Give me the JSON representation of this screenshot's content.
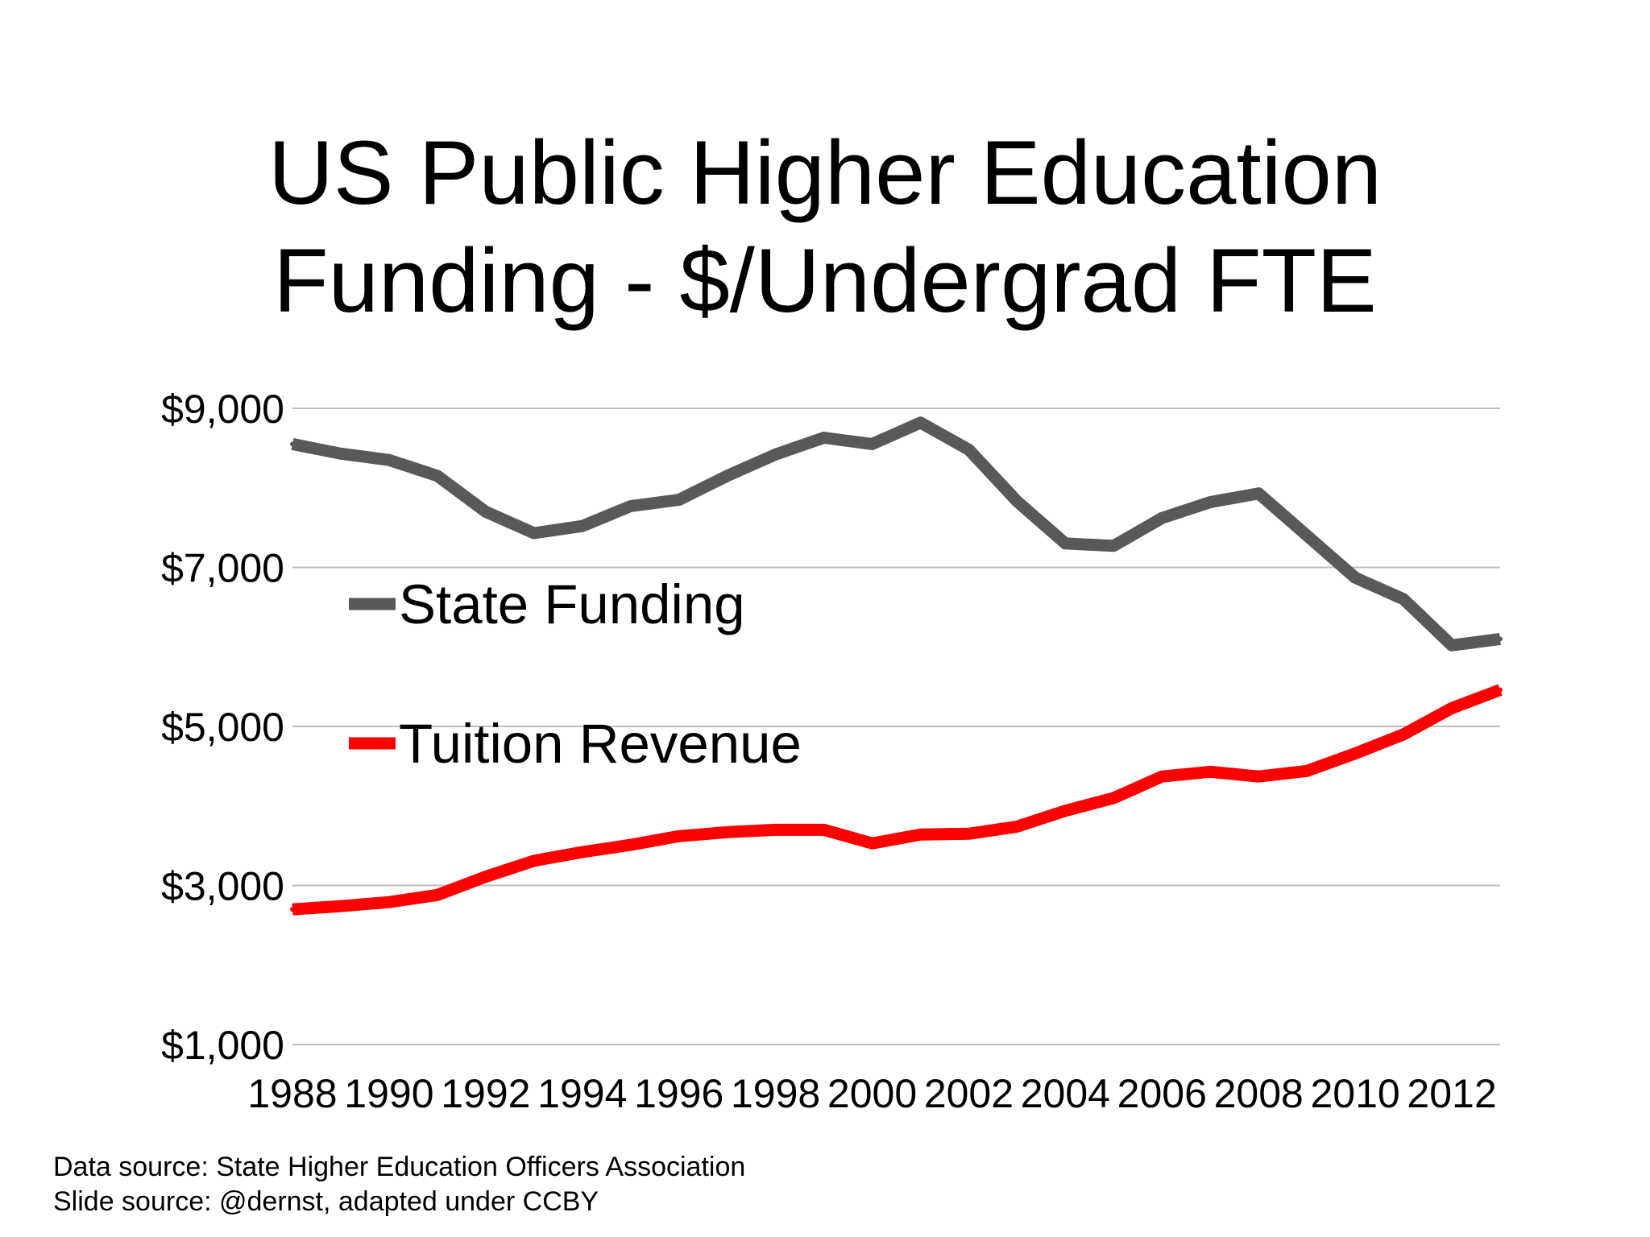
{
  "title": {
    "line1": "US Public Higher Education",
    "line2": "Funding - $/Undergrad FTE"
  },
  "footer": {
    "data_source": "Data source: State Higher Education Officers Association",
    "slide_source": "Slide source: @dernst, adapted under CCBY"
  },
  "colors": {
    "state_funding": "#595959",
    "tuition_revenue": "#ff0000",
    "gridline": "#bfbfbf"
  },
  "chart_data": {
    "type": "line",
    "title": "US Public Higher Education Funding - $/Undergrad FTE",
    "xlabel": "",
    "ylabel": "",
    "x": [
      1988,
      1989,
      1990,
      1991,
      1992,
      1993,
      1994,
      1995,
      1996,
      1997,
      1998,
      1999,
      2000,
      2001,
      2002,
      2003,
      2004,
      2005,
      2006,
      2007,
      2008,
      2009,
      2010,
      2011,
      2012,
      2013
    ],
    "x_tick_labels": [
      "1988",
      "1990",
      "1992",
      "1994",
      "1996",
      "1998",
      "2000",
      "2002",
      "2004",
      "2006",
      "2008",
      "2010",
      "2012"
    ],
    "y_tick_labels": [
      "$9,000",
      "$7,000",
      "$5,000",
      "$3,000",
      "$1,000"
    ],
    "y_tick_values": [
      9000,
      7000,
      5000,
      3000,
      1000
    ],
    "ylim": [
      1000,
      9000
    ],
    "grid": true,
    "legend_position": "left-center",
    "series": [
      {
        "name": "State Funding",
        "color": "#595959",
        "values": [
          8550,
          8430,
          8350,
          8150,
          7700,
          7430,
          7520,
          7770,
          7850,
          8150,
          8420,
          8630,
          8550,
          8820,
          8480,
          7830,
          7300,
          7270,
          7620,
          7820,
          7930,
          7400,
          6870,
          6600,
          6020,
          6100
        ]
      },
      {
        "name": "Tuition Revenue",
        "color": "#ff0000",
        "values": [
          2700,
          2740,
          2790,
          2880,
          3110,
          3310,
          3420,
          3510,
          3620,
          3670,
          3700,
          3700,
          3530,
          3640,
          3650,
          3740,
          3940,
          4100,
          4370,
          4430,
          4370,
          4440,
          4660,
          4900,
          5230,
          5460
        ]
      }
    ]
  }
}
